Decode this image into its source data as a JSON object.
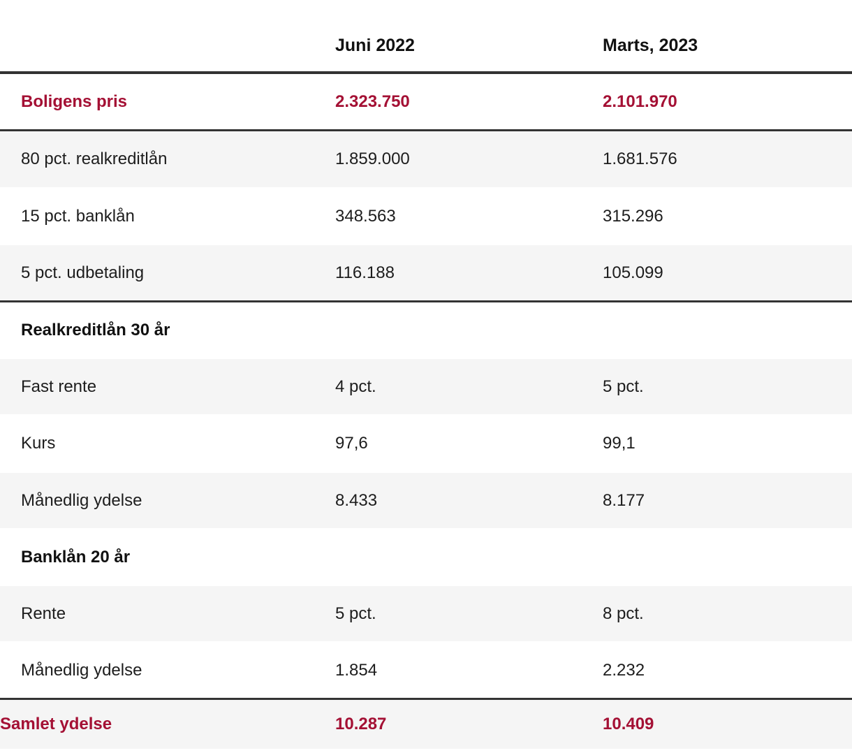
{
  "colors": {
    "accent_red": "#a41034",
    "divider_dark": "#333333",
    "row_stripe_gray": "#f5f5f5",
    "text": "#1d1d1d"
  },
  "chart_data": {
    "type": "table",
    "columns": [
      "",
      "Juni 2022",
      "Marts, 2023"
    ],
    "rows": [
      {
        "label": "Boligens pris",
        "values": [
          "2.323.750",
          "2.101.970"
        ],
        "style": "highlight"
      },
      {
        "label": "80 pct. realkreditlån",
        "values": [
          "1.859.000",
          "1.681.576"
        ],
        "style": "striped"
      },
      {
        "label": "15 pct. banklån",
        "values": [
          "348.563",
          "315.296"
        ],
        "style": "plain"
      },
      {
        "label": "5 pct. udbetaling",
        "values": [
          "116.188",
          "105.099"
        ],
        "style": "striped"
      },
      {
        "label": "Realkreditlån 30 år",
        "values": [
          "",
          ""
        ],
        "style": "section"
      },
      {
        "label": "Fast rente",
        "values": [
          "4 pct.",
          "5 pct."
        ],
        "style": "striped"
      },
      {
        "label": "Kurs",
        "values": [
          "97,6",
          "99,1"
        ],
        "style": "plain"
      },
      {
        "label": "Månedlig ydelse",
        "values": [
          "8.433",
          "8.177"
        ],
        "style": "striped"
      },
      {
        "label": "Banklån 20 år",
        "values": [
          "",
          ""
        ],
        "style": "section"
      },
      {
        "label": "Rente",
        "values": [
          "5 pct.",
          "8 pct."
        ],
        "style": "striped"
      },
      {
        "label": "Månedlig ydelse",
        "values": [
          "1.854",
          "2.232"
        ],
        "style": "plain"
      },
      {
        "label": "Samlet ydelse",
        "values": [
          "10.287",
          "10.409"
        ],
        "style": "total"
      }
    ]
  }
}
